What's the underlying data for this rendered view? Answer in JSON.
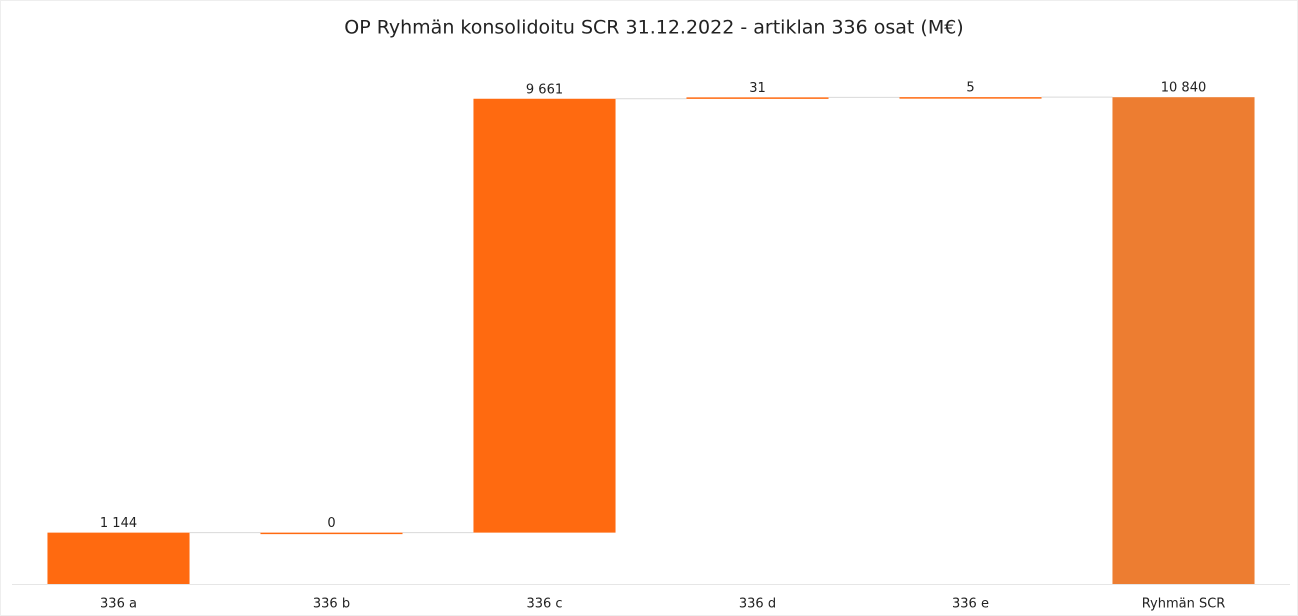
{
  "chart_data": {
    "type": "waterfall",
    "title": "OP Ryhmän konsolidoitu SCR 31.12.2022 - artiklan 336 osat (M€)",
    "categories": [
      "336 a",
      "336 b",
      "336 c",
      "336 d",
      "336 e",
      "Ryhmän SCR"
    ],
    "values": [
      1144,
      0,
      9661,
      31,
      5,
      10840
    ],
    "value_labels": [
      "1 144",
      "0",
      "9 661",
      "31",
      "5",
      "10 840"
    ],
    "colors": [
      "#ff6a10",
      "#ff6a10",
      "#ff6a10",
      "#ff6a10",
      "#ff6a10",
      "#ed7d31"
    ],
    "ylim": [
      0,
      11000
    ]
  }
}
